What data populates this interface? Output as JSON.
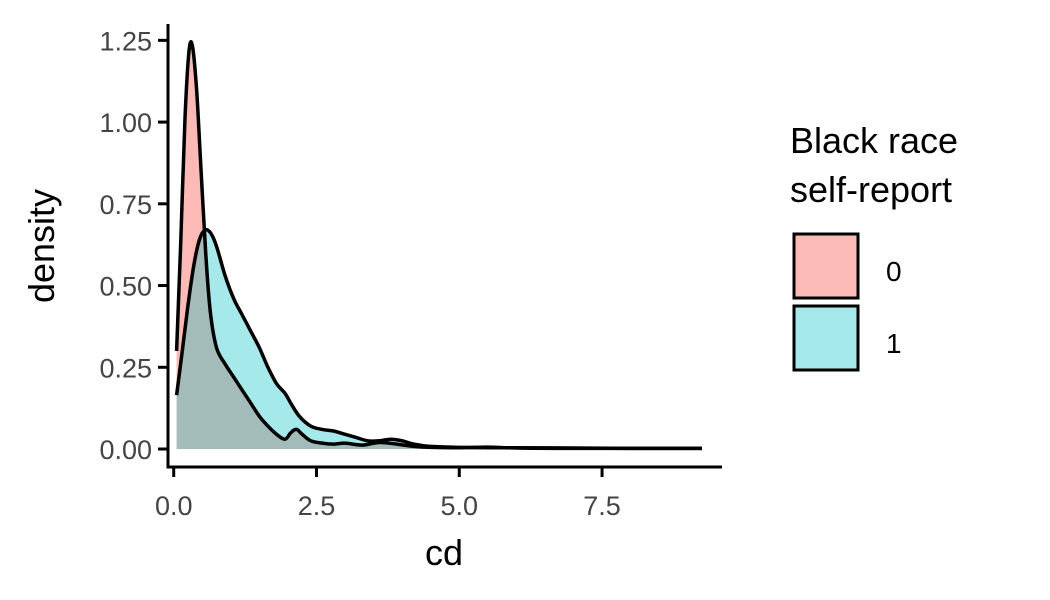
{
  "chart_data": {
    "type": "area",
    "subtype": "density",
    "xlabel": "cd",
    "ylabel": "density",
    "xlim": [
      -0.1,
      9.6
    ],
    "ylim": [
      -0.055,
      1.3
    ],
    "x_ticks": [
      0,
      2.5,
      5,
      7.5
    ],
    "x_tick_labels": [
      "0.0",
      "2.5",
      "5.0",
      "7.5"
    ],
    "y_ticks": [
      0,
      0.25,
      0.5,
      0.75,
      1,
      1.25
    ],
    "y_tick_labels": [
      "0.00",
      "0.25",
      "0.50",
      "0.75",
      "1.00",
      "1.25"
    ],
    "grid": false,
    "legend": {
      "title": [
        "Black race",
        "self-report"
      ],
      "position": "right",
      "entries": [
        {
          "label": "0",
          "color": "#F8766D"
        },
        {
          "label": "1",
          "color": "#00BFC4"
        }
      ]
    },
    "series": [
      {
        "name": "0",
        "color": "#F8766D",
        "fill_opacity": 0.5,
        "x": [
          0.05,
          0.12,
          0.2,
          0.27,
          0.33,
          0.4,
          0.48,
          0.56,
          0.64,
          0.75,
          0.9,
          1.05,
          1.2,
          1.35,
          1.5,
          1.65,
          1.8,
          1.95,
          2.05,
          2.15,
          2.25,
          2.4,
          2.6,
          2.8,
          3.0,
          3.3,
          3.6,
          3.9,
          4.2,
          4.5,
          5.0,
          5.5,
          6.0,
          7.0,
          8.0,
          9.25
        ],
        "y": [
          0.3,
          0.62,
          1.02,
          1.22,
          1.23,
          1.1,
          0.85,
          0.6,
          0.42,
          0.31,
          0.26,
          0.22,
          0.18,
          0.14,
          0.1,
          0.07,
          0.045,
          0.03,
          0.05,
          0.06,
          0.045,
          0.025,
          0.018,
          0.015,
          0.018,
          0.012,
          0.02,
          0.015,
          0.008,
          0.005,
          0.004,
          0.006,
          0.003,
          0.002,
          0.002,
          0.002
        ]
      },
      {
        "name": "1",
        "color": "#00BFC4",
        "fill_opacity": 0.35,
        "x": [
          0.05,
          0.15,
          0.25,
          0.35,
          0.45,
          0.55,
          0.65,
          0.75,
          0.9,
          1.05,
          1.2,
          1.35,
          1.5,
          1.65,
          1.8,
          1.95,
          2.05,
          2.2,
          2.4,
          2.6,
          2.8,
          3.0,
          3.2,
          3.4,
          3.6,
          3.8,
          4.0,
          4.2,
          4.5,
          5.0,
          5.5,
          6.0,
          7.0,
          8.0,
          9.25
        ],
        "y": [
          0.165,
          0.3,
          0.44,
          0.56,
          0.64,
          0.67,
          0.66,
          0.62,
          0.53,
          0.46,
          0.41,
          0.36,
          0.31,
          0.25,
          0.2,
          0.17,
          0.14,
          0.1,
          0.07,
          0.06,
          0.055,
          0.045,
          0.035,
          0.025,
          0.025,
          0.03,
          0.025,
          0.015,
          0.008,
          0.005,
          0.004,
          0.004,
          0.003,
          0.002,
          0.002
        ]
      }
    ]
  }
}
